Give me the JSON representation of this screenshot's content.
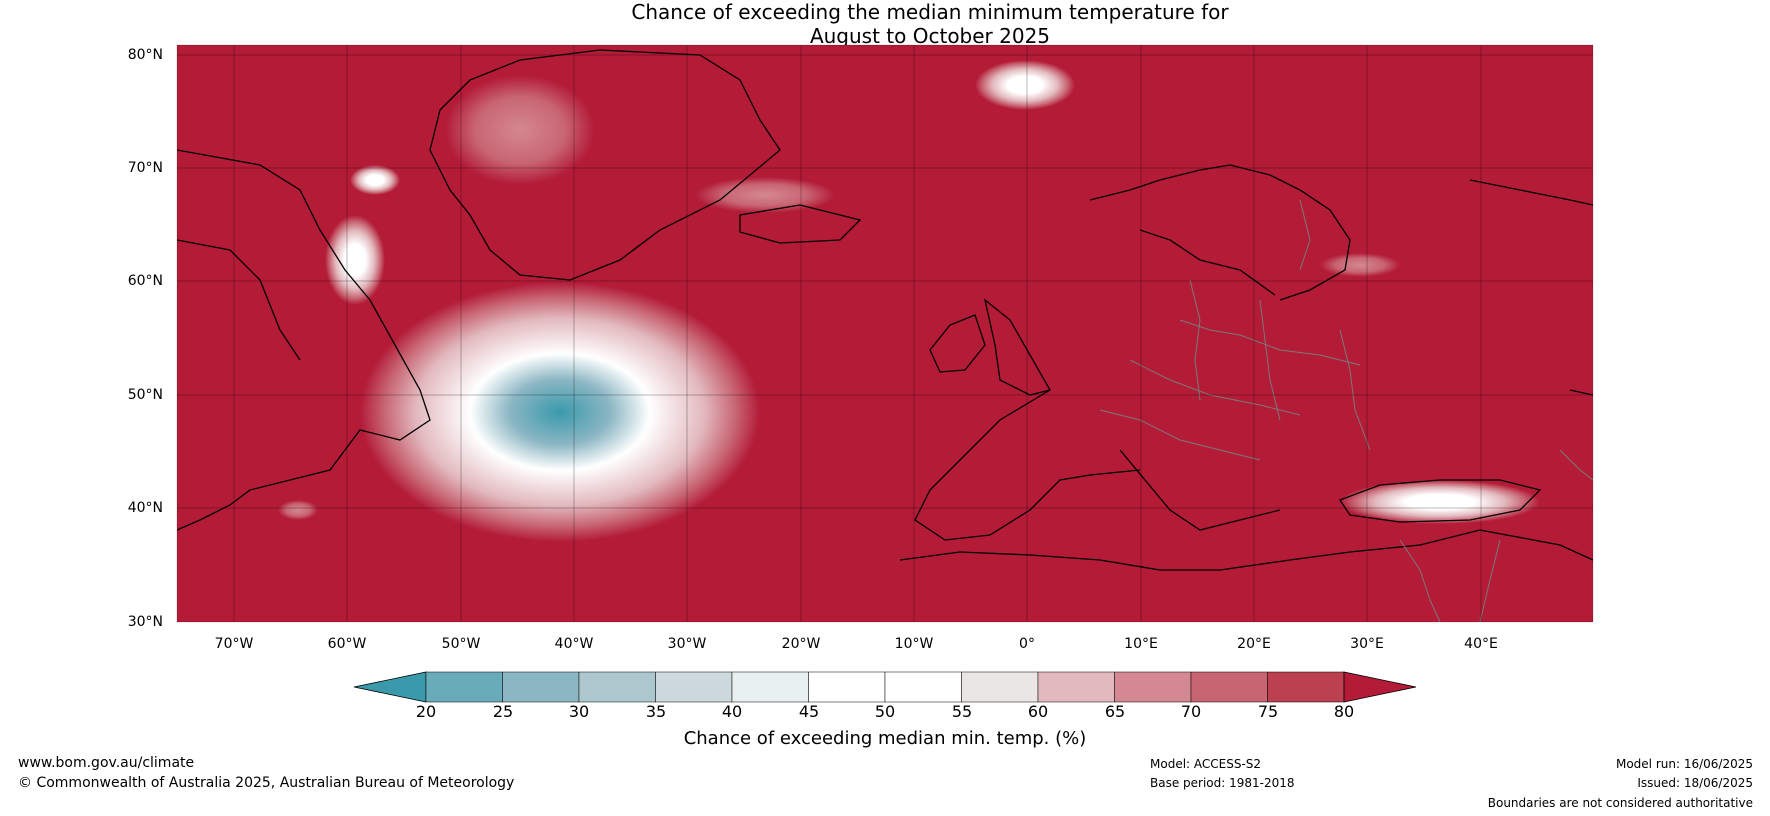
{
  "title": {
    "line1": "Chance of exceeding the median minimum temperature for",
    "line2": "August to October 2025"
  },
  "map": {
    "background_color": "#b31b37",
    "lat_labels": [
      "80°N",
      "70°N",
      "60°N",
      "50°N",
      "40°N",
      "30°N"
    ],
    "lon_labels": [
      "70°W",
      "60°W",
      "50°W",
      "40°W",
      "30°W",
      "20°W",
      "10°W",
      "0°",
      "10°E",
      "20°E",
      "30°E",
      "40°E"
    ]
  },
  "colorbar": {
    "ticks": [
      "20",
      "25",
      "30",
      "35",
      "40",
      "45",
      "50",
      "55",
      "60",
      "65",
      "70",
      "75",
      "80"
    ],
    "colors": [
      "#3a9aac",
      "#6aabba",
      "#8bb6c3",
      "#adc7ce",
      "#cdd9dd",
      "#e8f0f0",
      "#ffffff",
      "#ffffff",
      "#ebe6e6",
      "#e2b9be",
      "#d48891",
      "#c86573",
      "#bb4050",
      "#b31b37"
    ],
    "label": "Chance of exceeding median min. temp. (%)"
  },
  "footer": {
    "url": "www.bom.gov.au/climate",
    "copyright": "© Commonwealth of Australia 2025, Australian Bureau of Meteorology",
    "model": "Model: ACCESS-S2",
    "base_period": "Base period: 1981-2018",
    "model_run": "Model run: 16/06/2025",
    "issued": "Issued: 18/06/2025",
    "disclaimer": "Boundaries are not considered authoritative"
  }
}
